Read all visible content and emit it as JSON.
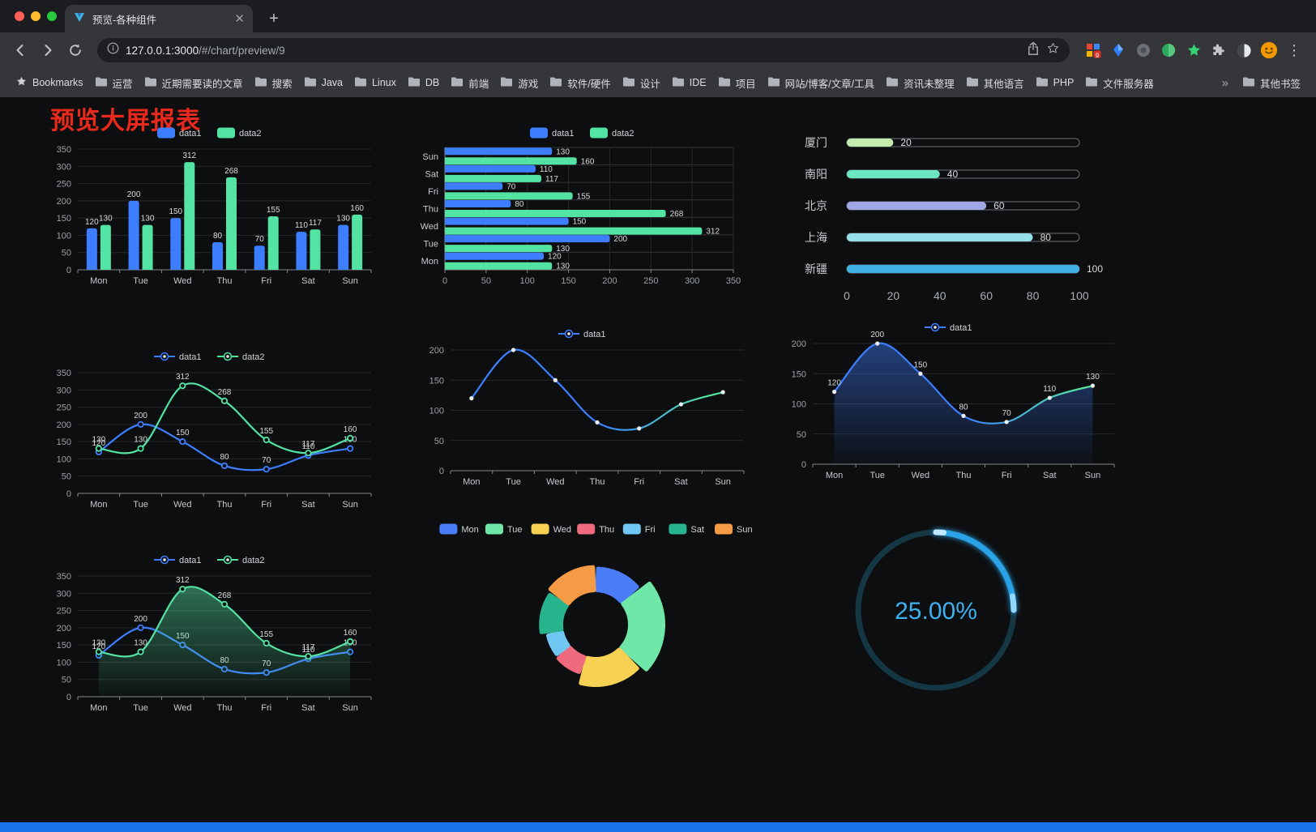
{
  "browser": {
    "tab": {
      "title": "预览-各种组件"
    },
    "url": {
      "host": "127.0.0.1:3000",
      "path": "/#/chart/preview/9"
    },
    "bookmarks_bar": {
      "root_label": "Bookmarks",
      "folders": [
        "运营",
        "近期需要读的文章",
        "搜索",
        "Java",
        "Linux",
        "DB",
        "前端",
        "游戏",
        "软件/硬件",
        "设计",
        "IDE",
        "项目",
        "网站/博客/文章/工具",
        "资讯未整理",
        "其他语言",
        "PHP",
        "文件服务器"
      ],
      "overflow": "»",
      "other": "其他书签"
    }
  },
  "page": {
    "title": "预览大屏报表",
    "title_color": "#e8291c",
    "background": "#0d0e10",
    "bottom_bar_color": "#1a73e8"
  },
  "chart_data": [
    {
      "type": "bar",
      "categories": [
        "Mon",
        "Tue",
        "Wed",
        "Thu",
        "Fri",
        "Sat",
        "Sun"
      ],
      "series": [
        {
          "name": "data1",
          "color": "#3D7EFF",
          "values": [
            120,
            200,
            150,
            80,
            70,
            110,
            130
          ]
        },
        {
          "name": "data2",
          "color": "#53E3A3",
          "values": [
            130,
            130,
            312,
            268,
            155,
            117,
            160
          ]
        }
      ],
      "ylim": [
        0,
        350
      ],
      "yticks": [
        0,
        50,
        100,
        150,
        200,
        250,
        300,
        350
      ],
      "legend_position": "top",
      "value_labels": true
    },
    {
      "type": "hbar",
      "categories": [
        "Mon",
        "Tue",
        "Wed",
        "Thu",
        "Fri",
        "Sat",
        "Sun"
      ],
      "series": [
        {
          "name": "data1",
          "color": "#3D7EFF",
          "values": [
            120,
            200,
            150,
            80,
            70,
            110,
            130
          ]
        },
        {
          "name": "data2",
          "color": "#53E3A3",
          "values": [
            130,
            130,
            312,
            268,
            155,
            117,
            160
          ]
        }
      ],
      "xlim": [
        0,
        350
      ],
      "xticks": [
        0,
        50,
        100,
        150,
        200,
        250,
        300,
        350
      ],
      "legend_position": "top",
      "value_labels": true
    },
    {
      "type": "progress-bars",
      "rows": [
        {
          "label": "厦门",
          "value": 20,
          "color": "#c4ebad"
        },
        {
          "label": "南阳",
          "value": 40,
          "color": "#6be6c1"
        },
        {
          "label": "北京",
          "value": 60,
          "color": "#a0a7e6"
        },
        {
          "label": "上海",
          "value": 80,
          "color": "#96dee8"
        },
        {
          "label": "新疆",
          "value": 100,
          "color": "#3fb1e3"
        }
      ],
      "xlim": [
        0,
        100
      ],
      "xticks": [
        0,
        20,
        40,
        60,
        80,
        100
      ]
    },
    {
      "type": "line",
      "smooth": true,
      "categories": [
        "Mon",
        "Tue",
        "Wed",
        "Thu",
        "Fri",
        "Sat",
        "Sun"
      ],
      "series": [
        {
          "name": "data1",
          "color": "#3D7EFF",
          "point_style": "ring",
          "values": [
            120,
            200,
            150,
            80,
            70,
            110,
            130
          ]
        },
        {
          "name": "data2",
          "color": "#53E3A3",
          "point_style": "ring",
          "values": [
            130,
            130,
            312,
            268,
            155,
            117,
            160
          ]
        }
      ],
      "ylim": [
        0,
        350
      ],
      "yticks": [
        0,
        50,
        100,
        150,
        200,
        250,
        300,
        350
      ],
      "legend_position": "top",
      "value_labels": true
    },
    {
      "type": "line",
      "smooth": true,
      "categories": [
        "Mon",
        "Tue",
        "Wed",
        "Thu",
        "Fri",
        "Sat",
        "Sun"
      ],
      "series": [
        {
          "name": "data1",
          "color_gradient": [
            "#3D7EFF",
            "#53E3A3"
          ],
          "point_style": "dot",
          "values": [
            120,
            200,
            150,
            80,
            70,
            110,
            130
          ]
        }
      ],
      "ylim": [
        0,
        200
      ],
      "yticks": [
        0,
        50,
        100,
        150,
        200
      ],
      "legend_position": "top",
      "value_labels": false
    },
    {
      "type": "area",
      "smooth": true,
      "categories": [
        "Mon",
        "Tue",
        "Wed",
        "Thu",
        "Fri",
        "Sat",
        "Sun"
      ],
      "series": [
        {
          "name": "data1",
          "color_gradient": [
            "#3D7EFF",
            "#53E3A3"
          ],
          "area": true,
          "area_color": "#3D7EFF",
          "point_style": "dot",
          "values": [
            120,
            200,
            150,
            80,
            70,
            110,
            130
          ]
        }
      ],
      "ylim": [
        0,
        200
      ],
      "yticks": [
        0,
        50,
        100,
        150,
        200
      ],
      "legend_position": "top",
      "value_labels": true
    },
    {
      "type": "line",
      "smooth": true,
      "categories": [
        "Mon",
        "Tue",
        "Wed",
        "Thu",
        "Fri",
        "Sat",
        "Sun"
      ],
      "series": [
        {
          "name": "data1",
          "color": "#3D7EFF",
          "point_style": "ring",
          "values": [
            120,
            200,
            150,
            80,
            70,
            110,
            130
          ]
        },
        {
          "name": "data2",
          "color": "#53E3A3",
          "point_style": "ring",
          "area": true,
          "area_color": "#53E3A3",
          "values": [
            130,
            130,
            312,
            268,
            155,
            117,
            160
          ]
        }
      ],
      "ylim": [
        0,
        350
      ],
      "yticks": [
        0,
        50,
        100,
        150,
        200,
        250,
        300,
        350
      ],
      "legend_position": "top",
      "value_labels": true
    },
    {
      "type": "pie",
      "rose": true,
      "donut": true,
      "categories": [
        "Mon",
        "Tue",
        "Wed",
        "Thu",
        "Fri",
        "Sat",
        "Sun"
      ],
      "values": [
        120,
        200,
        150,
        80,
        70,
        110,
        130
      ],
      "colors": [
        "#4A7DF7",
        "#6EE7A8",
        "#F7D154",
        "#EE6A7C",
        "#70C8F2",
        "#27B38B",
        "#F59B45"
      ],
      "legend_position": "top"
    },
    {
      "type": "gauge",
      "value": 25,
      "max": 100,
      "label": "25.00%",
      "color": "#29A3E6",
      "track_color": "#153744",
      "text_color": "#3FB0EF"
    }
  ]
}
